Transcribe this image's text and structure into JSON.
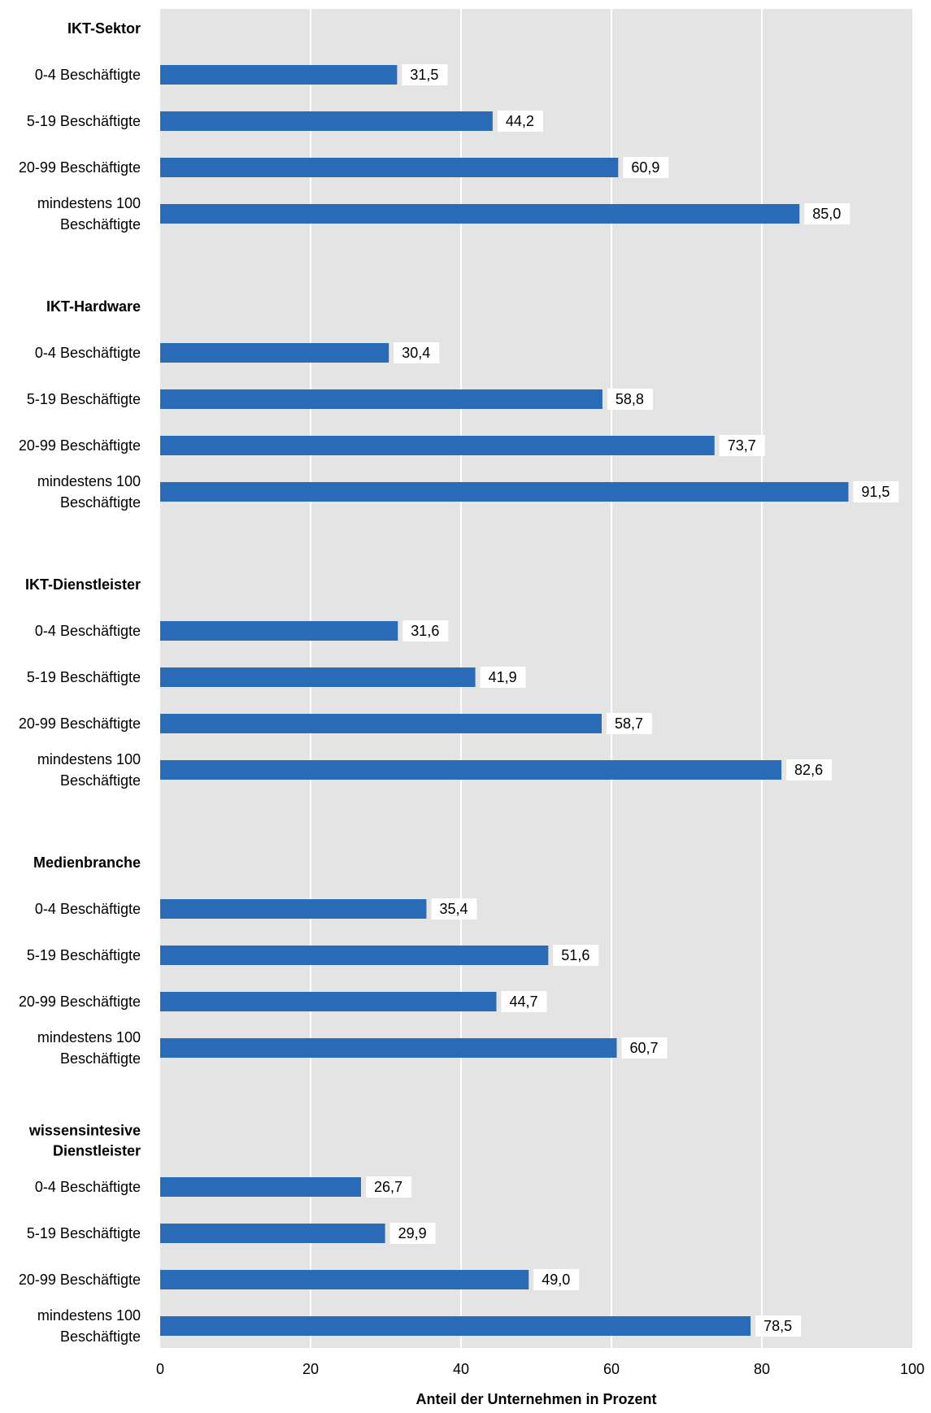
{
  "chart_data": {
    "type": "bar",
    "orientation": "horizontal",
    "xlabel": "Anteil der Unternehmen in Prozent",
    "ylabel": "",
    "xlim": [
      0,
      100
    ],
    "xticks": [
      "0",
      "20",
      "40",
      "60",
      "80",
      "100"
    ],
    "grid": true,
    "legend": "none",
    "colors": {
      "bar": "#2A6BB8",
      "plot_background": "#E4E4E4",
      "gridline": "#FFFFFF",
      "text": "#000000"
    },
    "groups": [
      {
        "name": [
          "IKT-Sektor"
        ],
        "rows": [
          {
            "label": [
              "0-4 Beschäftigte"
            ],
            "value": 31.5,
            "value_label": "31,5"
          },
          {
            "label": [
              "5-19 Beschäftigte"
            ],
            "value": 44.2,
            "value_label": "44,2"
          },
          {
            "label": [
              "20-99 Beschäftigte"
            ],
            "value": 60.9,
            "value_label": "60,9"
          },
          {
            "label": [
              "mindestens 100",
              "Beschäftigte"
            ],
            "value": 85.0,
            "value_label": "85,0"
          }
        ]
      },
      {
        "name": [
          "IKT-Hardware"
        ],
        "rows": [
          {
            "label": [
              "0-4 Beschäftigte"
            ],
            "value": 30.4,
            "value_label": "30,4"
          },
          {
            "label": [
              "5-19 Beschäftigte"
            ],
            "value": 58.8,
            "value_label": "58,8"
          },
          {
            "label": [
              "20-99 Beschäftigte"
            ],
            "value": 73.7,
            "value_label": "73,7"
          },
          {
            "label": [
              "mindestens 100",
              "Beschäftigte"
            ],
            "value": 91.5,
            "value_label": "91,5"
          }
        ]
      },
      {
        "name": [
          "IKT-Dienstleister"
        ],
        "rows": [
          {
            "label": [
              "0-4 Beschäftigte"
            ],
            "value": 31.6,
            "value_label": "31,6"
          },
          {
            "label": [
              "5-19 Beschäftigte"
            ],
            "value": 41.9,
            "value_label": "41,9"
          },
          {
            "label": [
              "20-99 Beschäftigte"
            ],
            "value": 58.7,
            "value_label": "58,7"
          },
          {
            "label": [
              "mindestens 100",
              "Beschäftigte"
            ],
            "value": 82.6,
            "value_label": "82,6"
          }
        ]
      },
      {
        "name": [
          "Medienbranche"
        ],
        "rows": [
          {
            "label": [
              "0-4 Beschäftigte"
            ],
            "value": 35.4,
            "value_label": "35,4"
          },
          {
            "label": [
              "5-19 Beschäftigte"
            ],
            "value": 51.6,
            "value_label": "51,6"
          },
          {
            "label": [
              "20-99 Beschäftigte"
            ],
            "value": 44.7,
            "value_label": "44,7"
          },
          {
            "label": [
              "mindestens 100",
              "Beschäftigte"
            ],
            "value": 60.7,
            "value_label": "60,7"
          }
        ]
      },
      {
        "name": [
          "wissensintesive",
          "Dienstleister"
        ],
        "rows": [
          {
            "label": [
              "0-4 Beschäftigte"
            ],
            "value": 26.7,
            "value_label": "26,7"
          },
          {
            "label": [
              "5-19 Beschäftigte"
            ],
            "value": 29.9,
            "value_label": "29,9"
          },
          {
            "label": [
              "20-99 Beschäftigte"
            ],
            "value": 49.0,
            "value_label": "49,0"
          },
          {
            "label": [
              "mindestens 100",
              "Beschäftigte"
            ],
            "value": 78.5,
            "value_label": "78,5"
          }
        ]
      }
    ]
  }
}
